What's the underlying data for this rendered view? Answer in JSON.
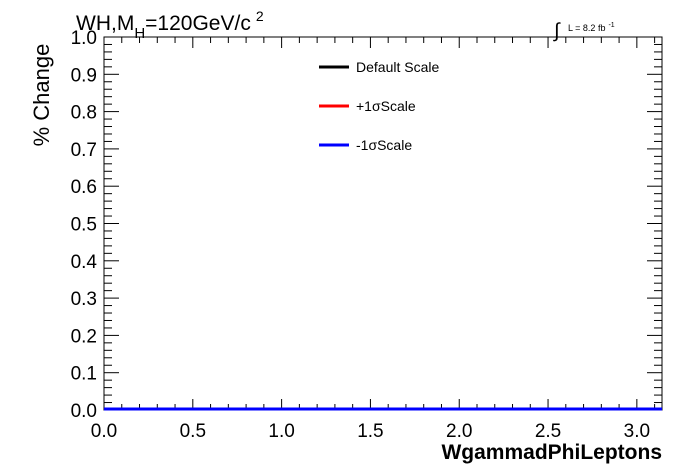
{
  "header": {
    "title_main": "WH,M",
    "title_sub": "H",
    "title_rest": "=120GeV/c",
    "title_sup": "2",
    "lumi_integral": "∫",
    "lumi_text": "L = 8.2 fb",
    "lumi_sup": "-1"
  },
  "chart_data": {
    "type": "line",
    "title": "WH,MH=120GeV/c2",
    "xlabel": "WgammadPhiLeptons",
    "ylabel": "% Change",
    "xlim": [
      0,
      3.14159
    ],
    "ylim": [
      0,
      1
    ],
    "x_ticks": [
      "0.0",
      "0.5",
      "1.0",
      "1.5",
      "2.0",
      "2.5",
      "3.0"
    ],
    "y_ticks": [
      "0.0",
      "0.1",
      "0.2",
      "0.3",
      "0.4",
      "0.5",
      "0.6",
      "0.7",
      "0.8",
      "0.9",
      "1.0"
    ],
    "legend_position": "top-center",
    "series": [
      {
        "name": "Default Scale",
        "color": "#000000",
        "x": [
          0,
          3.14159
        ],
        "y": [
          0,
          0
        ]
      },
      {
        "name": "+1σScale",
        "color": "#ff0000",
        "x": [
          0,
          3.14159
        ],
        "y": [
          0,
          0
        ]
      },
      {
        "name": "-1σScale",
        "color": "#0000ff",
        "x": [
          0,
          3.14159
        ],
        "y": [
          0,
          0
        ]
      }
    ]
  }
}
